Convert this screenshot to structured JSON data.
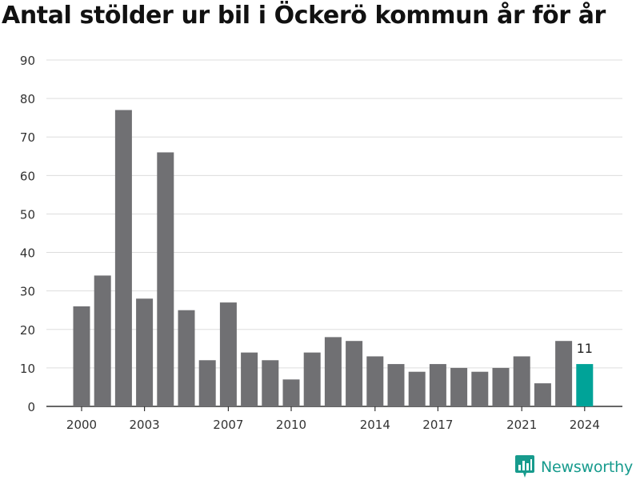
{
  "title": "Antal stölder ur bil i Öckerö kommun år för år",
  "brand": {
    "name": "Newsworthy",
    "icon": "newsworthy-logo-icon"
  },
  "colors": {
    "bar": "#707073",
    "highlight": "#00a398",
    "grid": "#dddddd",
    "brand": "#179b8d"
  },
  "chart_data": {
    "type": "bar",
    "title": "Antal stölder ur bil i Öckerö kommun år för år",
    "xlabel": "",
    "ylabel": "",
    "categories": [
      2000,
      2001,
      2002,
      2003,
      2004,
      2005,
      2006,
      2007,
      2008,
      2009,
      2010,
      2011,
      2012,
      2013,
      2014,
      2015,
      2016,
      2017,
      2018,
      2019,
      2020,
      2021,
      2022,
      2023,
      2024
    ],
    "values": [
      26,
      34,
      77,
      28,
      66,
      25,
      12,
      27,
      14,
      12,
      7,
      14,
      18,
      17,
      13,
      11,
      9,
      11,
      10,
      9,
      10,
      13,
      6,
      17,
      11
    ],
    "highlight_category": 2024,
    "highlight_label": "11",
    "xtick_labels": [
      "2000",
      "2003",
      "2007",
      "2010",
      "2014",
      "2017",
      "2021",
      "2024"
    ],
    "yticks": [
      0,
      10,
      20,
      30,
      40,
      50,
      60,
      70,
      80,
      90
    ],
    "ylim": [
      0,
      90
    ],
    "grid": true
  }
}
